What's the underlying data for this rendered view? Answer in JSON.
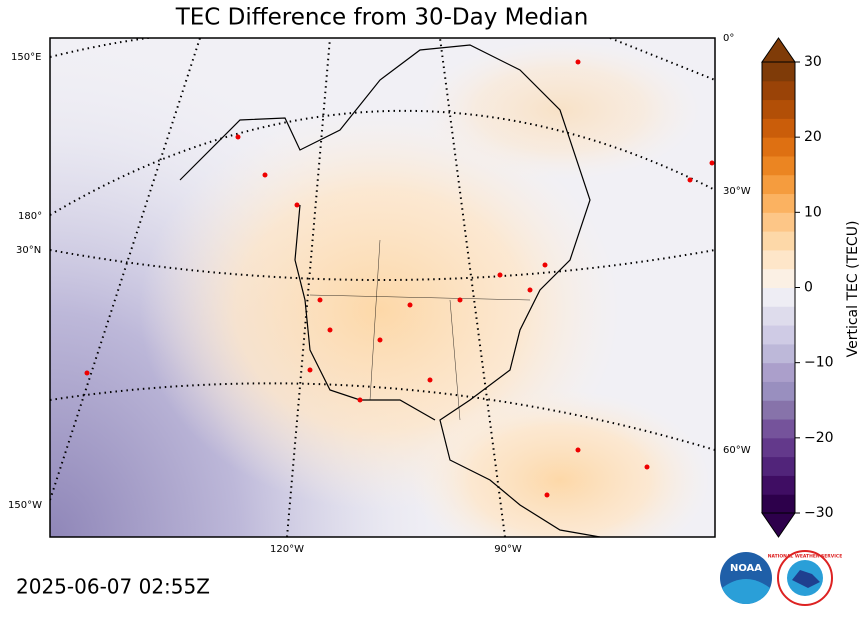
{
  "title": "TEC Difference from 30-Day Median",
  "timestamp": "2025-06-07 02:55Z",
  "graticule_labels": [
    "150°E",
    "180°",
    "30°N",
    "150°W",
    "0°",
    "30°W",
    "60°W",
    "120°W",
    "90°W"
  ],
  "colorbar": {
    "label": "Vertical TEC (TECU)",
    "vlim": [
      -30,
      30
    ],
    "ticks": [
      {
        "value": -30,
        "label": "−30"
      },
      {
        "value": -20,
        "label": "−20"
      },
      {
        "value": -10,
        "label": "−10"
      },
      0,
      10,
      20,
      30
    ],
    "colors": [
      "#2d004b",
      "#3f0d63",
      "#51247a",
      "#63398b",
      "#75539b",
      "#8773aa",
      "#998fbf",
      "#ab9fcb",
      "#bdb8d9",
      "#cfcbe5",
      "#dedcec",
      "#eeedf4",
      "#fbf0e4",
      "#fee6c9",
      "#fdd8a8",
      "#fdc687",
      "#fbb261",
      "#f59c3e",
      "#eb8522",
      "#de7012",
      "#ca5d0a",
      "#b24f07",
      "#9a4307",
      "#7f3b08"
    ]
  },
  "logos": {
    "noaa": "NOAA",
    "nws": "NATIONAL WEATHER SERVICE"
  }
}
